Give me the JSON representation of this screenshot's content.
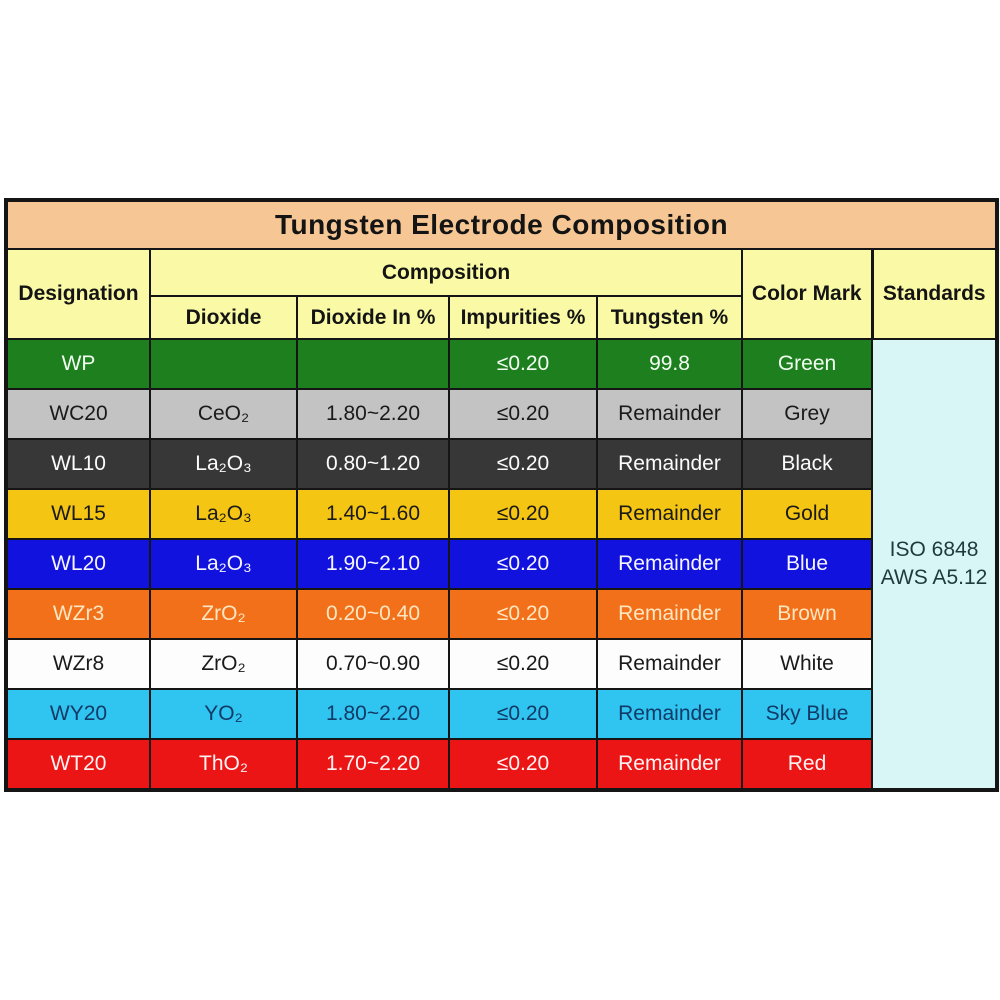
{
  "title": "Tungsten Electrode Composition",
  "header": {
    "designation": "Designation",
    "composition": "Composition",
    "dioxide": "Dioxide",
    "dioxide_in": "Dioxide In %",
    "impurities": "Impurities %",
    "tungsten": "Tungsten %",
    "color_mark": "Color Mark",
    "standards": "Standards"
  },
  "standards_cell": {
    "lines": [
      "ISO 6848",
      "AWS A5.12"
    ],
    "bg": "#d9f6f6",
    "fg": "#1e3a3a"
  },
  "rows": [
    {
      "designation": "WP",
      "dioxide": "",
      "dioxide_in": "",
      "impurities": "≤0.20",
      "tungsten": "99.8",
      "color_mark": "Green",
      "row_bg": "#1e7f1e",
      "text_color": "#f2fff2"
    },
    {
      "designation": "WC20",
      "dioxide": "CeO₂",
      "dioxide_in": "1.80~2.20",
      "impurities": "≤0.20",
      "tungsten": "Remainder",
      "color_mark": "Grey",
      "row_bg": "#c3c3c3",
      "text_color": "#1a1a1a"
    },
    {
      "designation": "WL10",
      "dioxide": "La₂O₃",
      "dioxide_in": "0.80~1.20",
      "impurities": "≤0.20",
      "tungsten": "Remainder",
      "color_mark": "Black",
      "row_bg": "#373737",
      "text_color": "#fbfbfb"
    },
    {
      "designation": "WL15",
      "dioxide": "La₂O₃",
      "dioxide_in": "1.40~1.60",
      "impurities": "≤0.20",
      "tungsten": "Remainder",
      "color_mark": "Gold",
      "row_bg": "#f4c513",
      "text_color": "#1a1a1a"
    },
    {
      "designation": "WL20",
      "dioxide": "La₂O₃",
      "dioxide_in": "1.90~2.10",
      "impurities": "≤0.20",
      "tungsten": "Remainder",
      "color_mark": "Blue",
      "row_bg": "#1212df",
      "text_color": "#f5f5ff"
    },
    {
      "designation": "WZr3",
      "dioxide": "ZrO₂",
      "dioxide_in": "0.20~0.40",
      "impurities": "≤0.20",
      "tungsten": "Remainder",
      "color_mark": "Brown",
      "row_bg": "#f17019",
      "text_color": "#ffe6c2"
    },
    {
      "designation": "WZr8",
      "dioxide": "ZrO₂",
      "dioxide_in": "0.70~0.90",
      "impurities": "≤0.20",
      "tungsten": "Remainder",
      "color_mark": "White",
      "row_bg": "#fdfdfd",
      "text_color": "#1a1a1a"
    },
    {
      "designation": "WY20",
      "dioxide": "YO₂",
      "dioxide_in": "1.80~2.20",
      "impurities": "≤0.20",
      "tungsten": "Remainder",
      "color_mark": "Sky Blue",
      "row_bg": "#2fc5f0",
      "text_color": "#123a66"
    },
    {
      "designation": "WT20",
      "dioxide": "ThO₂",
      "dioxide_in": "1.70~2.20",
      "impurities": "≤0.20",
      "tungsten": "Remainder",
      "color_mark": "Red",
      "row_bg": "#ec1515",
      "text_color": "#fdf2f2"
    }
  ],
  "colors": {
    "title_bg": "#f6c795",
    "header_bg": "#fafaa6",
    "border": "#151515",
    "page_bg": "#ffffff"
  }
}
